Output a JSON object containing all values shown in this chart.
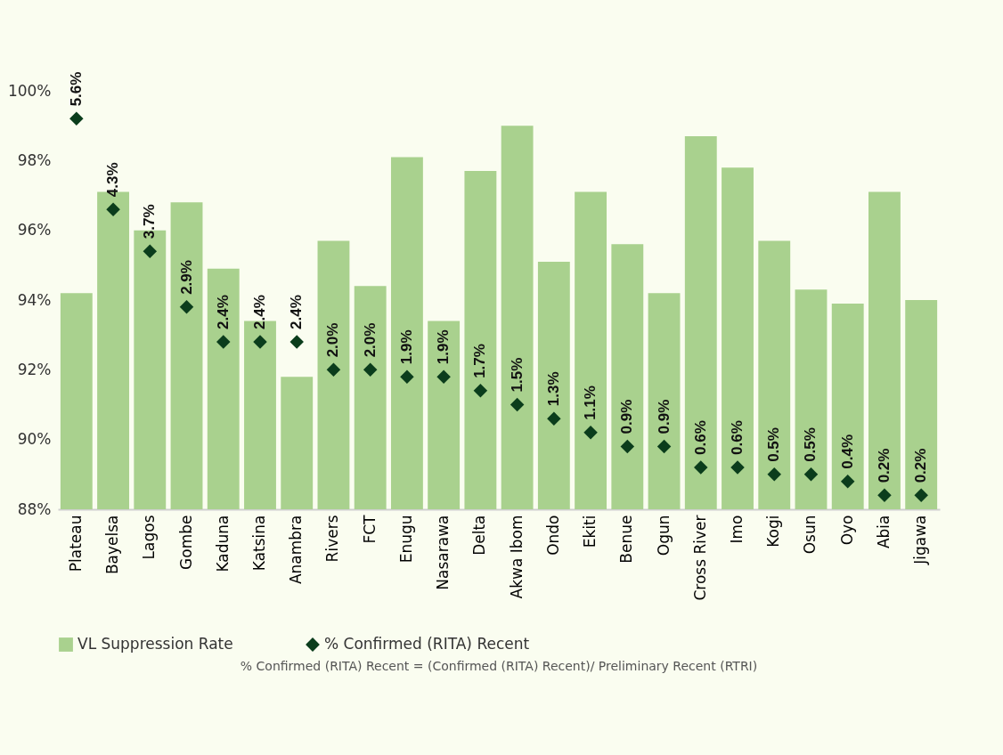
{
  "chart_data": {
    "type": "bar",
    "categories": [
      "Plateau",
      "Bayelsa",
      "Lagos",
      "Gombe",
      "Kaduna",
      "Katsina",
      "Anambra",
      "Rivers",
      "FCT",
      "Enugu",
      "Nasarawa",
      "Delta",
      "Akwa Ibom",
      "Ondo",
      "Ekiti",
      "Benue",
      "Ogun",
      "Cross River",
      "Imo",
      "Kogi",
      "Osun",
      "Oyo",
      "Abia",
      "Jigawa"
    ],
    "series": [
      {
        "name": "VL Suppression Rate",
        "color": "#a9d18e",
        "values": [
          94.2,
          97.1,
          96.0,
          96.8,
          94.9,
          93.4,
          91.8,
          95.7,
          94.4,
          98.1,
          93.4,
          97.7,
          99.0,
          95.1,
          97.1,
          95.6,
          94.2,
          98.7,
          97.8,
          95.7,
          94.3,
          93.9,
          97.1,
          94.0
        ]
      },
      {
        "name": "% Confirmed (RITA) Recent",
        "type": "scatter",
        "axis": "y2",
        "marker": "diamond",
        "color": "#0b3d1c",
        "values": [
          5.6,
          4.3,
          3.7,
          2.9,
          2.4,
          2.4,
          2.4,
          2.0,
          2.0,
          1.9,
          1.9,
          1.7,
          1.5,
          1.3,
          1.1,
          0.9,
          0.9,
          0.6,
          0.6,
          0.5,
          0.5,
          0.4,
          0.2,
          0.2
        ],
        "value_labels": [
          "5.6%",
          "4.3%",
          "3.7%",
          "2.9%",
          "2.4%",
          "2.4%",
          "2.4%",
          "2.0%",
          "2.0%",
          "1.9%",
          "1.9%",
          "1.7%",
          "1.5%",
          "1.3%",
          "1.1%",
          "0.9%",
          "0.9%",
          "0.6%",
          "0.6%",
          "0.5%",
          "0.5%",
          "0.4%",
          "0.2%",
          "0.2%"
        ]
      }
    ],
    "ylim": [
      88,
      100
    ],
    "yticks": [
      {
        "value": 88,
        "label": "88%"
      },
      {
        "value": 90,
        "label": "90%"
      },
      {
        "value": 92,
        "label": "92%"
      },
      {
        "value": 94,
        "label": "94%"
      },
      {
        "value": 96,
        "label": "96%"
      },
      {
        "value": 98,
        "label": "98%"
      },
      {
        "value": 100,
        "label": "100%"
      }
    ],
    "grid": false,
    "legend": "bottom",
    "annotations": [
      "% Confirmed (RITA) Recent = (Confirmed (RITA) Recent)/ Preliminary Recent (RTRI)"
    ]
  }
}
